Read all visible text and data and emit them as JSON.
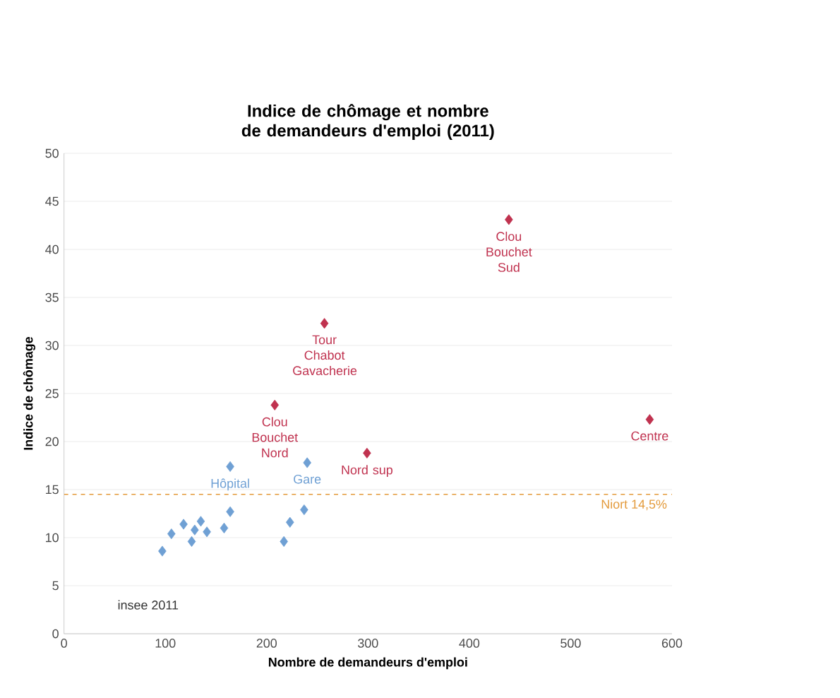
{
  "chart_data": {
    "type": "scatter",
    "title": "Indice de chômage et nombre de demandeurs d'emploi (2011)",
    "xlabel": "Nombre de demandeurs d'emploi",
    "ylabel": "Indice de chômage",
    "series": [
      {
        "color": "#6fa0d4",
        "x": [
          97,
          106,
          118,
          126,
          129,
          135,
          141,
          158,
          164,
          164,
          217,
          223,
          237,
          240
        ],
        "values": [
          8.6,
          10.4,
          11.4,
          9.6,
          10.8,
          11.7,
          10.6,
          11.0,
          12.7,
          17.4,
          9.6,
          11.6,
          12.9,
          17.8
        ]
      },
      {
        "color": "#c0324f",
        "x": [
          208,
          257,
          299,
          439,
          578
        ],
        "values": [
          23.8,
          32.3,
          18.8,
          43.1,
          22.3
        ]
      }
    ],
    "annotations": [
      {
        "text": "Hôpital",
        "x": 164,
        "y": 17.4
      },
      {
        "text": "Gare",
        "x": 240,
        "y": 17.8
      },
      {
        "text": "Clou Bouchet Nord",
        "x": 208,
        "y": 23.8
      },
      {
        "text": "Tour Chabot Gavacherie",
        "x": 257,
        "y": 32.3
      },
      {
        "text": "Nord sup",
        "x": 299,
        "y": 18.8
      },
      {
        "text": "Clou Bouchet Sud",
        "x": 439,
        "y": 43.1
      },
      {
        "text": "Centre",
        "x": 578,
        "y": 22.3
      },
      "insee 2011"
    ],
    "ref_lines": [
      {
        "axis": "y",
        "value": 14.5,
        "label": "Niort 14,5%",
        "color": "#e39a3b",
        "line_style": "dashed"
      }
    ],
    "xlim": [
      0,
      600
    ],
    "xticks": [
      0,
      100,
      200,
      300,
      400,
      500,
      600
    ],
    "ylim": [
      0,
      50
    ],
    "yticks": [
      0,
      5,
      10,
      15,
      20,
      25,
      30,
      35,
      40,
      45,
      50
    ],
    "grid": "y",
    "marker": "diamond"
  }
}
